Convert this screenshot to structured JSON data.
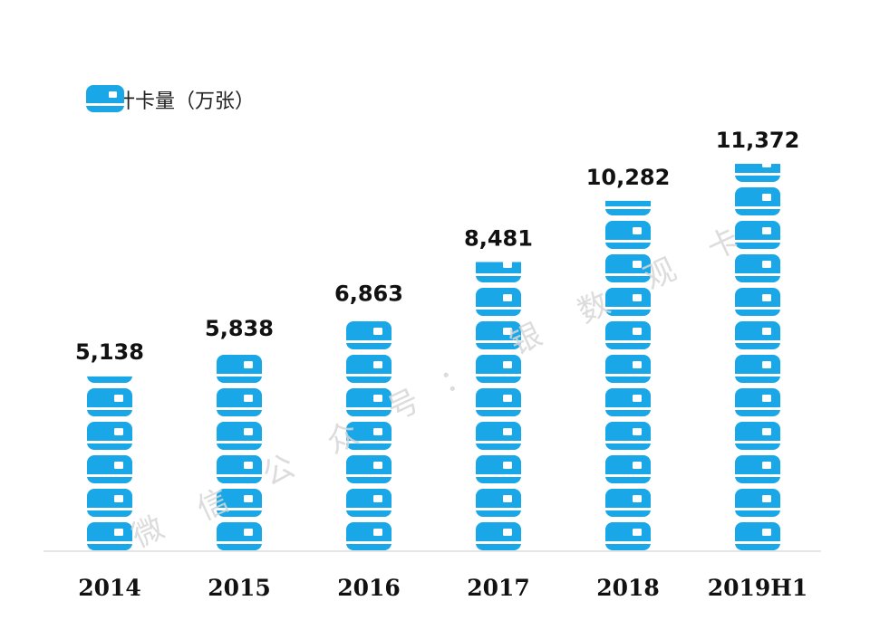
{
  "chart_data": {
    "type": "bar",
    "legend": {
      "label": "累计卡量（万张）",
      "placement": "top-left"
    },
    "categories": [
      "2014",
      "2015",
      "2016",
      "2017",
      "2018",
      "2019H1"
    ],
    "series": [
      {
        "name": "累计卡量（万张）",
        "values": [
          5138,
          5838,
          6863,
          8481,
          10282,
          11372
        ]
      }
    ],
    "value_labels": [
      "5,138",
      "5,838",
      "6,863",
      "8,481",
      "10,282",
      "11,372"
    ],
    "ylim": [
      0,
      11372
    ],
    "grid": false,
    "bar_style": "stacked-card-icons"
  },
  "watermark": {
    "chars": [
      "微",
      "信",
      "公",
      "众",
      "号",
      "：",
      "银",
      "数",
      "观",
      "卡"
    ]
  },
  "colors": {
    "bar": "#1aa7e8",
    "text": "#111111",
    "axis": "#dddddd",
    "watermark": "#d6d6d6"
  }
}
